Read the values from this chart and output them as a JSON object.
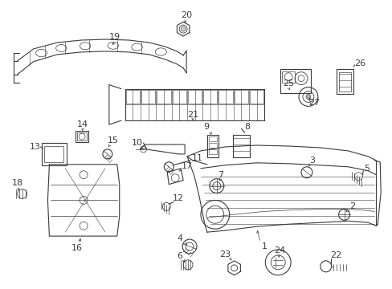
{
  "background_color": "#ffffff",
  "figure_width": 4.89,
  "figure_height": 3.6,
  "dpi": 100,
  "gray": "#3a3a3a",
  "lw": 0.8
}
